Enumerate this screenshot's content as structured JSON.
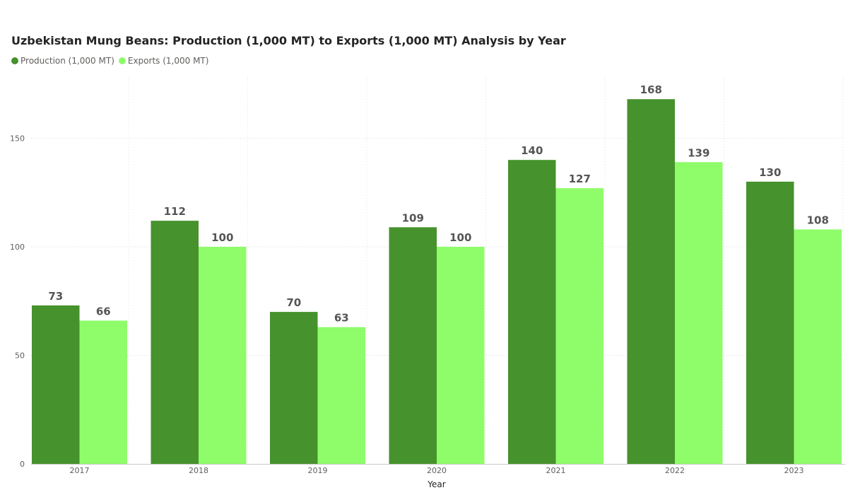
{
  "chart_data": {
    "type": "bar",
    "title": "Uzbekistan Mung Beans: Production (1,000 MT) to Exports (1,000 MT) Analysis by Year",
    "xlabel": "Year",
    "ylabel": "",
    "categories": [
      "2017",
      "2018",
      "2019",
      "2020",
      "2021",
      "2022",
      "2023"
    ],
    "series": [
      {
        "name": "Production (1,000 MT)",
        "color": "#46922c",
        "values": [
          73,
          112,
          70,
          109,
          140,
          168,
          130
        ]
      },
      {
        "name": "Exports (1,000 MT)",
        "color": "#8ffc6a",
        "values": [
          66,
          100,
          63,
          100,
          127,
          139,
          108
        ]
      }
    ],
    "ylim": [
      0,
      180
    ],
    "yticks": [
      0,
      50,
      100,
      150
    ],
    "grid": true,
    "legend_position": "top-left"
  }
}
